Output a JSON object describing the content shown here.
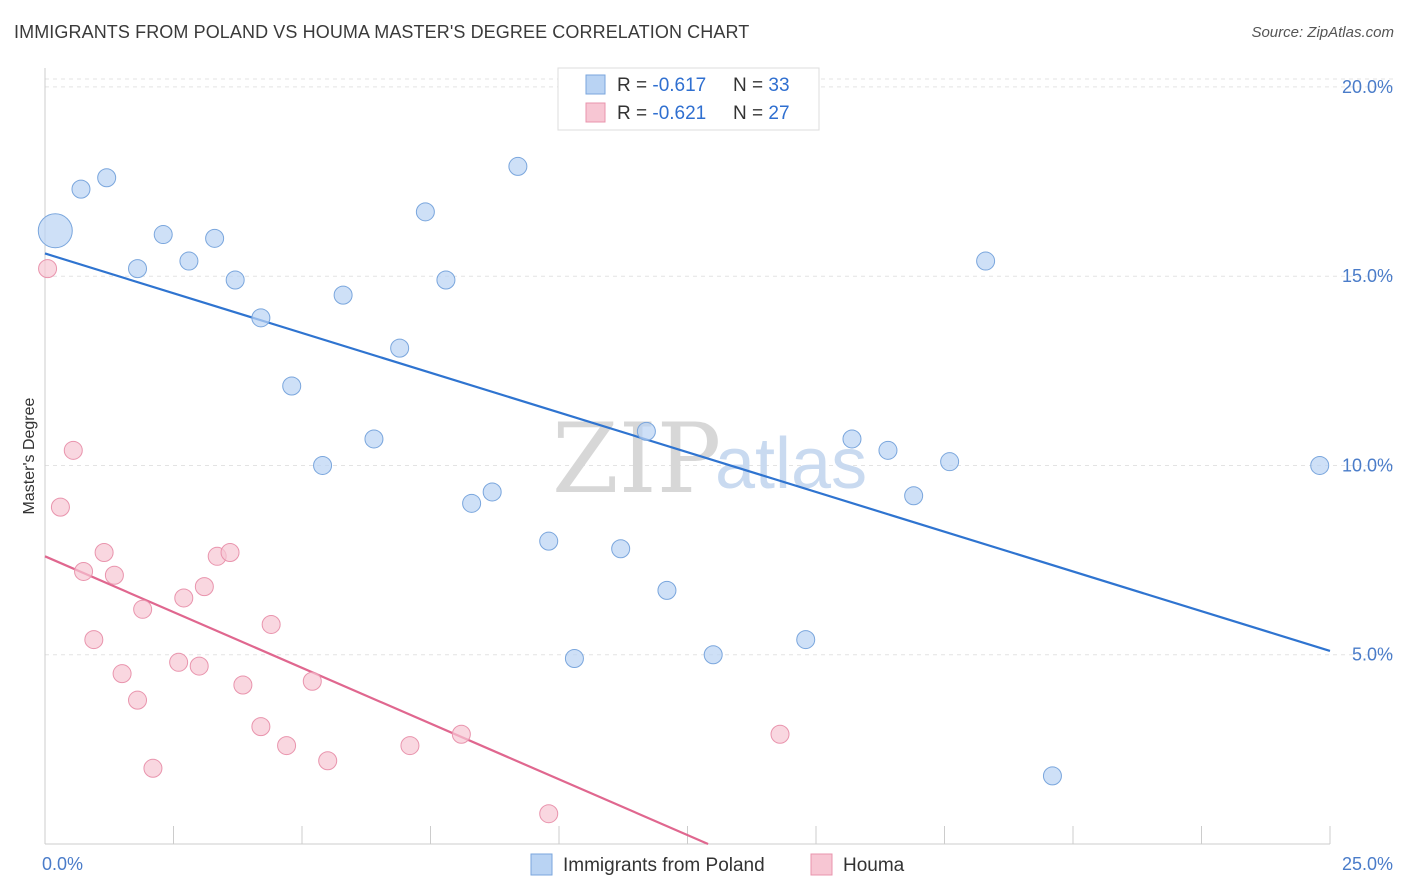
{
  "header": {
    "title": "IMMIGRANTS FROM POLAND VS HOUMA MASTER'S DEGREE CORRELATION CHART",
    "source": "Source: ZipAtlas.com"
  },
  "watermark": {
    "zip": "ZIP",
    "atlas": "atlas"
  },
  "chart_data": {
    "type": "scatter",
    "title": "IMMIGRANTS FROM POLAND VS HOUMA MASTER'S DEGREE CORRELATION CHART",
    "xlabel": "",
    "ylabel": "Master's Degree",
    "xlim": [
      0,
      25
    ],
    "ylim": [
      0,
      20.5
    ],
    "x_tick_labels": [
      {
        "value": 0,
        "label": "0.0%"
      },
      {
        "value": 25,
        "label": "25.0%"
      }
    ],
    "y_ticks": [
      {
        "value": 5,
        "label": "5.0%"
      },
      {
        "value": 10,
        "label": "10.0%"
      },
      {
        "value": 15,
        "label": "15.0%"
      },
      {
        "value": 20,
        "label": "20.0%"
      }
    ],
    "grid": true,
    "legend_position": "top-center",
    "legend": [
      {
        "r_label": "R = ",
        "r_value": "-0.617",
        "n_label": "N = ",
        "n_value": "33"
      },
      {
        "r_label": "R = ",
        "r_value": "-0.621",
        "n_label": "N = ",
        "n_value": "27"
      }
    ],
    "series": [
      {
        "name": "Immigrants from Poland",
        "fill": "#b9d3f3",
        "stroke": "#7aa6dd",
        "line_color": "#2f74d0",
        "trend": {
          "x1": 0,
          "y1": 15.6,
          "x2": 25,
          "y2": 5.1
        },
        "points": [
          {
            "x": 0.2,
            "y": 16.2,
            "r": 17
          },
          {
            "x": 0.7,
            "y": 17.3,
            "r": 9
          },
          {
            "x": 1.2,
            "y": 17.6,
            "r": 9
          },
          {
            "x": 1.8,
            "y": 15.2,
            "r": 9
          },
          {
            "x": 2.3,
            "y": 16.1,
            "r": 9
          },
          {
            "x": 2.8,
            "y": 15.4,
            "r": 9
          },
          {
            "x": 3.3,
            "y": 16.0,
            "r": 9
          },
          {
            "x": 3.7,
            "y": 14.9,
            "r": 9
          },
          {
            "x": 4.2,
            "y": 13.9,
            "r": 9
          },
          {
            "x": 4.8,
            "y": 12.1,
            "r": 9
          },
          {
            "x": 5.4,
            "y": 10.0,
            "r": 9
          },
          {
            "x": 5.8,
            "y": 14.5,
            "r": 9
          },
          {
            "x": 6.4,
            "y": 10.7,
            "r": 9
          },
          {
            "x": 6.9,
            "y": 13.1,
            "r": 9
          },
          {
            "x": 7.4,
            "y": 16.7,
            "r": 9
          },
          {
            "x": 7.8,
            "y": 14.9,
            "r": 9
          },
          {
            "x": 8.3,
            "y": 9.0,
            "r": 9
          },
          {
            "x": 8.7,
            "y": 9.3,
            "r": 9
          },
          {
            "x": 9.2,
            "y": 17.9,
            "r": 9
          },
          {
            "x": 9.8,
            "y": 8.0,
            "r": 9
          },
          {
            "x": 10.3,
            "y": 4.9,
            "r": 9
          },
          {
            "x": 11.2,
            "y": 7.8,
            "r": 9
          },
          {
            "x": 11.7,
            "y": 10.9,
            "r": 9
          },
          {
            "x": 12.1,
            "y": 6.7,
            "r": 9
          },
          {
            "x": 13.0,
            "y": 5.0,
            "r": 9
          },
          {
            "x": 14.8,
            "y": 5.4,
            "r": 9
          },
          {
            "x": 15.7,
            "y": 10.7,
            "r": 9
          },
          {
            "x": 16.4,
            "y": 10.4,
            "r": 9
          },
          {
            "x": 16.9,
            "y": 9.2,
            "r": 9
          },
          {
            "x": 17.6,
            "y": 10.1,
            "r": 9
          },
          {
            "x": 18.3,
            "y": 15.4,
            "r": 9
          },
          {
            "x": 19.6,
            "y": 1.8,
            "r": 9
          },
          {
            "x": 24.8,
            "y": 10.0,
            "r": 9
          }
        ]
      },
      {
        "name": "Houma",
        "fill": "#f7c6d3",
        "stroke": "#e994ad",
        "line_color": "#e0678f",
        "trend": {
          "x1": 0,
          "y1": 7.6,
          "x2": 12.9,
          "y2": 0
        },
        "points": [
          {
            "x": 0.05,
            "y": 15.2,
            "r": 9
          },
          {
            "x": 0.3,
            "y": 8.9,
            "r": 9
          },
          {
            "x": 0.55,
            "y": 10.4,
            "r": 9
          },
          {
            "x": 0.75,
            "y": 7.2,
            "r": 9
          },
          {
            "x": 0.95,
            "y": 5.4,
            "r": 9
          },
          {
            "x": 1.15,
            "y": 7.7,
            "r": 9
          },
          {
            "x": 1.35,
            "y": 7.1,
            "r": 9
          },
          {
            "x": 1.5,
            "y": 4.5,
            "r": 9
          },
          {
            "x": 1.8,
            "y": 3.8,
            "r": 9
          },
          {
            "x": 1.9,
            "y": 6.2,
            "r": 9
          },
          {
            "x": 2.1,
            "y": 2.0,
            "r": 9
          },
          {
            "x": 2.6,
            "y": 4.8,
            "r": 9
          },
          {
            "x": 2.7,
            "y": 6.5,
            "r": 9
          },
          {
            "x": 3.0,
            "y": 4.7,
            "r": 9
          },
          {
            "x": 3.1,
            "y": 6.8,
            "r": 9
          },
          {
            "x": 3.35,
            "y": 7.6,
            "r": 9
          },
          {
            "x": 3.6,
            "y": 7.7,
            "r": 9
          },
          {
            "x": 3.85,
            "y": 4.2,
            "r": 9
          },
          {
            "x": 4.2,
            "y": 3.1,
            "r": 9
          },
          {
            "x": 4.4,
            "y": 5.8,
            "r": 9
          },
          {
            "x": 4.7,
            "y": 2.6,
            "r": 9
          },
          {
            "x": 5.2,
            "y": 4.3,
            "r": 9
          },
          {
            "x": 5.5,
            "y": 2.2,
            "r": 9
          },
          {
            "x": 7.1,
            "y": 2.6,
            "r": 9
          },
          {
            "x": 8.1,
            "y": 2.9,
            "r": 9
          },
          {
            "x": 9.8,
            "y": 0.8,
            "r": 9
          },
          {
            "x": 14.3,
            "y": 2.9,
            "r": 9
          }
        ]
      }
    ]
  }
}
